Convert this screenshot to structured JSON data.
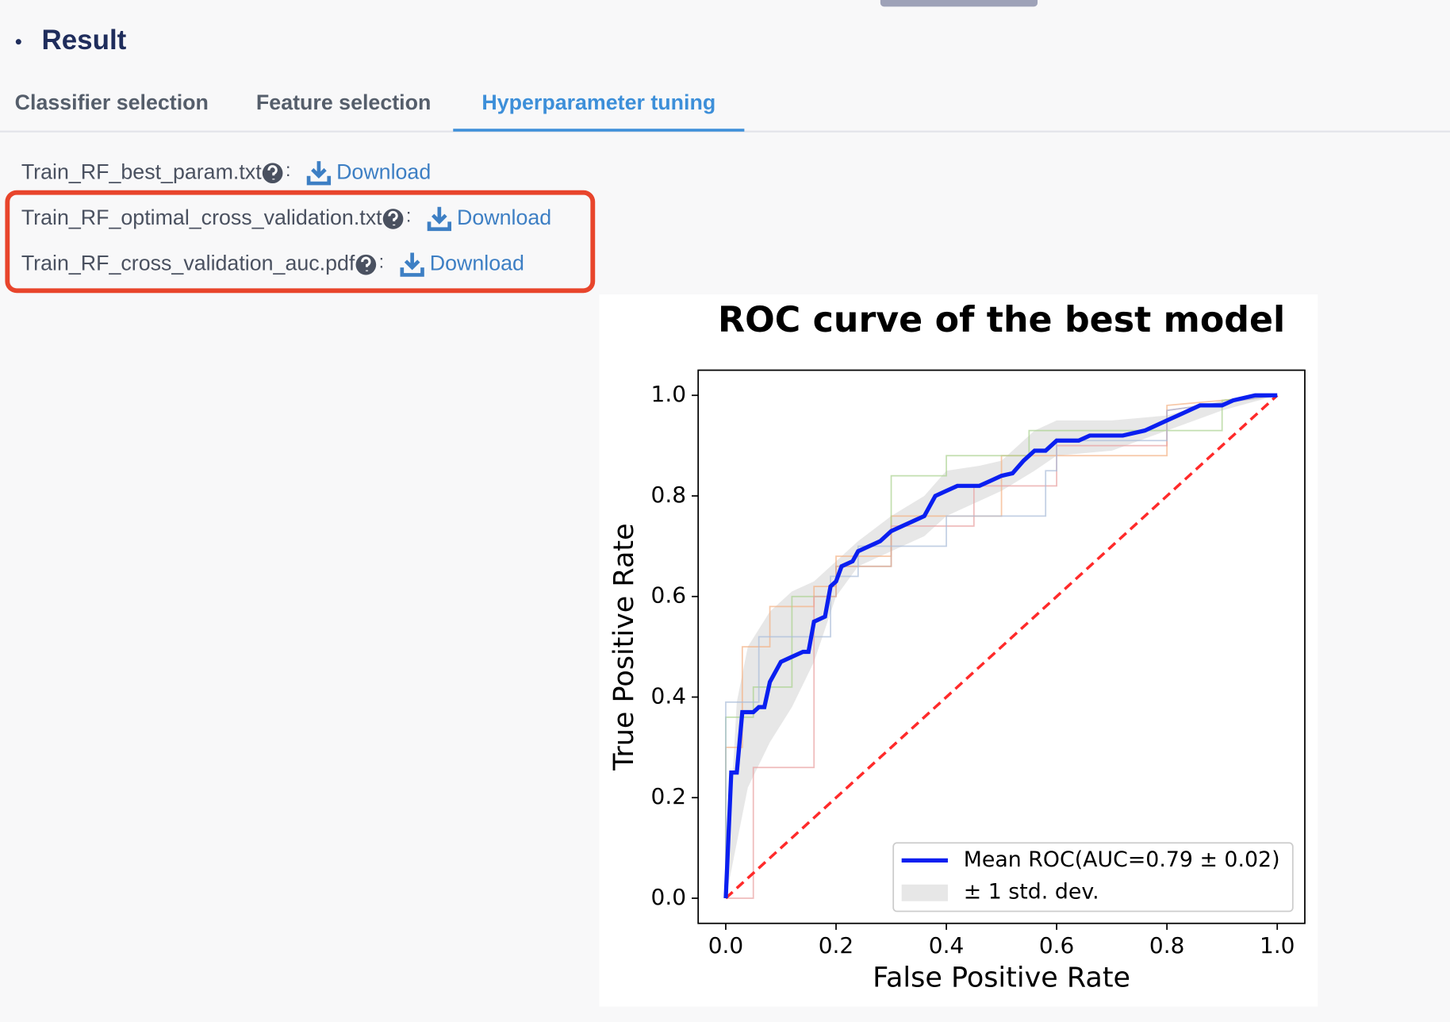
{
  "header": {
    "title": "Result"
  },
  "tabs": [
    "Classifier selection",
    "Feature selection",
    "Hyperparameter tuning"
  ],
  "active_tab": 2,
  "separator": ":",
  "files": [
    {
      "name": "Train_RF_best_param.txt",
      "link": "Download"
    },
    {
      "name": "Train_RF_optimal_cross_validation.txt",
      "link": "Download"
    },
    {
      "name": "Train_RF_cross_validation_auc.pdf",
      "link": "Download"
    }
  ],
  "chart_data": {
    "type": "line",
    "title": "ROC curve of the best model",
    "xlabel": "False Positive Rate",
    "ylabel": "True Positive Rate",
    "xlim": [
      -0.05,
      1.05
    ],
    "ylim": [
      -0.05,
      1.05
    ],
    "xticks": [
      {
        "value": 0,
        "label": "0.0"
      },
      {
        "value": 0.2,
        "label": "0.2"
      },
      {
        "value": 0.4,
        "label": "0.4"
      },
      {
        "value": 0.6,
        "label": "0.6"
      },
      {
        "value": 0.8,
        "label": "0.8"
      },
      {
        "value": 1,
        "label": "1.0"
      }
    ],
    "yticks": [
      {
        "value": 0,
        "label": "0.0"
      },
      {
        "value": 0.2,
        "label": "0.2"
      },
      {
        "value": 0.4,
        "label": "0.4"
      },
      {
        "value": 0.6,
        "label": "0.6"
      },
      {
        "value": 0.8,
        "label": "0.8"
      },
      {
        "value": 1,
        "label": "1.0"
      }
    ],
    "legend": "lower right",
    "band": {
      "name": "± 1 std. dev.",
      "color": "#d3d3d3",
      "x": [
        0,
        0.02,
        0.04,
        0.08,
        0.12,
        0.16,
        0.2,
        0.24,
        0.3,
        0.36,
        0.4,
        0.46,
        0.5,
        0.56,
        0.6,
        0.7,
        0.8,
        0.9,
        1
      ],
      "upper": [
        0,
        0.39,
        0.5,
        0.57,
        0.61,
        0.63,
        0.67,
        0.71,
        0.76,
        0.8,
        0.85,
        0.86,
        0.87,
        0.93,
        0.95,
        0.95,
        0.96,
        0.99,
        1
      ],
      "lower": [
        0,
        0.11,
        0.22,
        0.31,
        0.38,
        0.47,
        0.6,
        0.66,
        0.69,
        0.72,
        0.76,
        0.79,
        0.81,
        0.85,
        0.88,
        0.89,
        0.93,
        0.97,
        1
      ]
    },
    "series": [
      {
        "color": "#f4b183",
        "x": [
          0,
          0,
          0.03,
          0.03,
          0.08,
          0.08,
          0.16,
          0.16,
          0.2,
          0.2,
          0.3,
          0.3,
          0.5,
          0.5,
          0.8,
          0.8,
          1
        ],
        "values": [
          0,
          0.3,
          0.3,
          0.5,
          0.5,
          0.58,
          0.58,
          0.62,
          0.62,
          0.68,
          0.68,
          0.76,
          0.76,
          0.88,
          0.88,
          0.98,
          1
        ],
        "width": 1.5,
        "opacity": 0.7
      },
      {
        "color": "#a9d18e",
        "x": [
          0,
          0,
          0.05,
          0.05,
          0.12,
          0.12,
          0.2,
          0.2,
          0.3,
          0.3,
          0.4,
          0.4,
          0.55,
          0.55,
          0.9,
          0.9,
          1
        ],
        "values": [
          0,
          0.36,
          0.36,
          0.42,
          0.42,
          0.6,
          0.6,
          0.66,
          0.66,
          0.84,
          0.84,
          0.88,
          0.88,
          0.93,
          0.93,
          0.99,
          1
        ],
        "width": 1.5,
        "opacity": 0.7
      },
      {
        "color": "#e8a0a0",
        "x": [
          0,
          0.05,
          0.05,
          0.16,
          0.16,
          0.2,
          0.2,
          0.3,
          0.3,
          0.45,
          0.45,
          0.6,
          0.6,
          0.8,
          0.8,
          1
        ],
        "values": [
          0,
          0,
          0.26,
          0.26,
          0.6,
          0.6,
          0.66,
          0.66,
          0.74,
          0.74,
          0.82,
          0.82,
          0.9,
          0.9,
          0.97,
          1
        ],
        "width": 1.5,
        "opacity": 0.7
      },
      {
        "color": "#a9bcd9",
        "x": [
          0,
          0,
          0.06,
          0.06,
          0.19,
          0.19,
          0.24,
          0.24,
          0.4,
          0.4,
          0.58,
          0.58,
          0.6,
          0.6,
          0.8,
          0.8,
          1
        ],
        "values": [
          0,
          0.39,
          0.39,
          0.52,
          0.52,
          0.64,
          0.64,
          0.7,
          0.7,
          0.76,
          0.76,
          0.85,
          0.85,
          0.91,
          0.91,
          0.97,
          1
        ],
        "width": 1.5,
        "opacity": 0.7
      },
      {
        "color": "#ff2a2a",
        "x": [
          0,
          1
        ],
        "values": [
          0,
          1
        ],
        "width": 3,
        "dash": true
      },
      {
        "name": "Mean ROC(AUC=0.79 ± 0.02)",
        "color": "#0a1ff0",
        "width": 4.5,
        "x": [
          0,
          0.01,
          0.02,
          0.03,
          0.05,
          0.06,
          0.07,
          0.08,
          0.1,
          0.12,
          0.14,
          0.15,
          0.16,
          0.18,
          0.19,
          0.2,
          0.21,
          0.23,
          0.24,
          0.26,
          0.28,
          0.3,
          0.32,
          0.34,
          0.36,
          0.37,
          0.38,
          0.4,
          0.42,
          0.46,
          0.48,
          0.5,
          0.52,
          0.54,
          0.56,
          0.58,
          0.6,
          0.64,
          0.66,
          0.72,
          0.76,
          0.78,
          0.8,
          0.82,
          0.84,
          0.86,
          0.9,
          0.92,
          0.96,
          1
        ],
        "values": [
          0,
          0.25,
          0.25,
          0.37,
          0.37,
          0.38,
          0.38,
          0.43,
          0.47,
          0.48,
          0.49,
          0.49,
          0.55,
          0.56,
          0.62,
          0.63,
          0.66,
          0.67,
          0.69,
          0.7,
          0.71,
          0.73,
          0.74,
          0.75,
          0.76,
          0.78,
          0.8,
          0.81,
          0.82,
          0.82,
          0.83,
          0.84,
          0.845,
          0.87,
          0.89,
          0.89,
          0.91,
          0.91,
          0.92,
          0.92,
          0.93,
          0.94,
          0.95,
          0.96,
          0.97,
          0.98,
          0.98,
          0.99,
          1,
          1
        ]
      }
    ]
  }
}
